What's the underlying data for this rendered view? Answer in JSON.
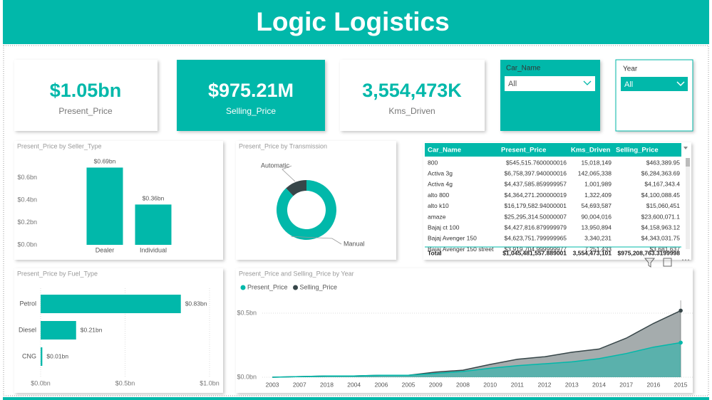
{
  "header": {
    "title": "Logic Logistics"
  },
  "cards": [
    {
      "value": "$1.05bn",
      "label": "Present_Price"
    },
    {
      "value": "$975.21M",
      "label": "Selling_Price"
    },
    {
      "value": "3,554,473K",
      "label": "Kms_Driven"
    }
  ],
  "slicers": [
    {
      "label": "Car_Name",
      "value": "All"
    },
    {
      "label": "Year",
      "value": "All"
    }
  ],
  "table": {
    "columns": [
      "Car_Name",
      "Present_Price",
      "Kms_Driven",
      "Selling_Price"
    ],
    "rows": [
      [
        "800",
        "$545,515.7600000016",
        "15,018,149",
        "$463,389.95"
      ],
      [
        "Activa 3g",
        "$6,758,397.940000016",
        "142,065,338",
        "$6,284,363.69"
      ],
      [
        "Activa 4g",
        "$4,437,585.859999957",
        "1,001,989",
        "$4,167,343.4"
      ],
      [
        "alto 800",
        "$4,364,271.200000019",
        "1,322,409",
        "$4,100,088.45"
      ],
      [
        "alto k10",
        "$16,179,582.94000001",
        "54,693,587",
        "$15,060,451"
      ],
      [
        "amaze",
        "$25,295,314.50000007",
        "90,004,016",
        "$23,600,071.1"
      ],
      [
        "Bajaj ct 100",
        "$4,427,816.879999979",
        "13,950,894",
        "$4,158,963.12"
      ],
      [
        "Bajaj Avenger 150",
        "$4,623,751.799999965",
        "3,340,231",
        "$4,343,031.75"
      ],
      [
        "Bajaj Avenger 150 street",
        "$3,919,704.999999977",
        "7,251,433",
        "$3,681,637"
      ]
    ],
    "total": [
      "Total",
      "$1,045,481,557.889001",
      "3,554,473,101",
      "$975,208,763.3199998"
    ]
  },
  "chart_data": [
    {
      "type": "bar",
      "title": "Present_Price by Seller_Type",
      "categories": [
        "Dealer",
        "Individual"
      ],
      "values": [
        0.69,
        0.36
      ],
      "value_labels": [
        "$0.69bn",
        "$0.36bn"
      ],
      "color": "#01b8aa",
      "ylim": [
        0,
        0.75
      ],
      "yticks": [
        {
          "value": 0,
          "label": "$0.0bn"
        },
        {
          "value": 0.2,
          "label": "$0.2bn"
        },
        {
          "value": 0.4,
          "label": "$0.4bn"
        },
        {
          "value": 0.6,
          "label": "$0.6bn"
        }
      ],
      "grid": false
    },
    {
      "type": "pie",
      "title": "Present_Price by Transmission",
      "donut": true,
      "categories": [
        "Automatic",
        "Manual"
      ],
      "values": [
        12,
        88
      ],
      "colors": [
        "#374649",
        "#01b8aa"
      ]
    },
    {
      "type": "bar",
      "orientation": "horizontal",
      "title": "Present_Price by Fuel_Type",
      "categories": [
        "Petrol",
        "Diesel",
        "CNG"
      ],
      "values": [
        0.83,
        0.21,
        0.01
      ],
      "value_labels": [
        "$0.83bn",
        "$0.21bn",
        "$0.01bn"
      ],
      "color": "#01b8aa",
      "xlim": [
        0,
        1
      ],
      "xticks": [
        {
          "value": 0,
          "label": "$0.0bn"
        },
        {
          "value": 0.5,
          "label": "$0.5bn"
        },
        {
          "value": 1,
          "label": "$1.0bn"
        }
      ],
      "grid": true
    },
    {
      "type": "area",
      "title": "Present_Price and Selling_Price by Year",
      "categories": [
        "2003",
        "2007",
        "2018",
        "2004",
        "2006",
        "2005",
        "2009",
        "2008",
        "2010",
        "2011",
        "2012",
        "2013",
        "2014",
        "2017",
        "2016",
        "2015"
      ],
      "series": [
        {
          "name": "Present_Price",
          "color": "#01b8aa",
          "values": [
            0,
            0.005,
            0.01,
            0.01,
            0.015,
            0.015,
            0.03,
            0.045,
            0.07,
            0.09,
            0.105,
            0.12,
            0.145,
            0.185,
            0.235,
            0.27
          ]
        },
        {
          "name": "Selling_Price",
          "color": "#374649",
          "values": [
            0,
            0.005,
            0.01,
            0.01,
            0.015,
            0.015,
            0.04,
            0.055,
            0.1,
            0.14,
            0.16,
            0.195,
            0.22,
            0.305,
            0.42,
            0.52
          ]
        }
      ],
      "ylim": [
        0,
        0.6
      ],
      "yticks": [
        {
          "value": 0,
          "label": "$0.0bn"
        },
        {
          "value": 0.5,
          "label": "$0.5bn"
        }
      ],
      "grid": true
    }
  ]
}
